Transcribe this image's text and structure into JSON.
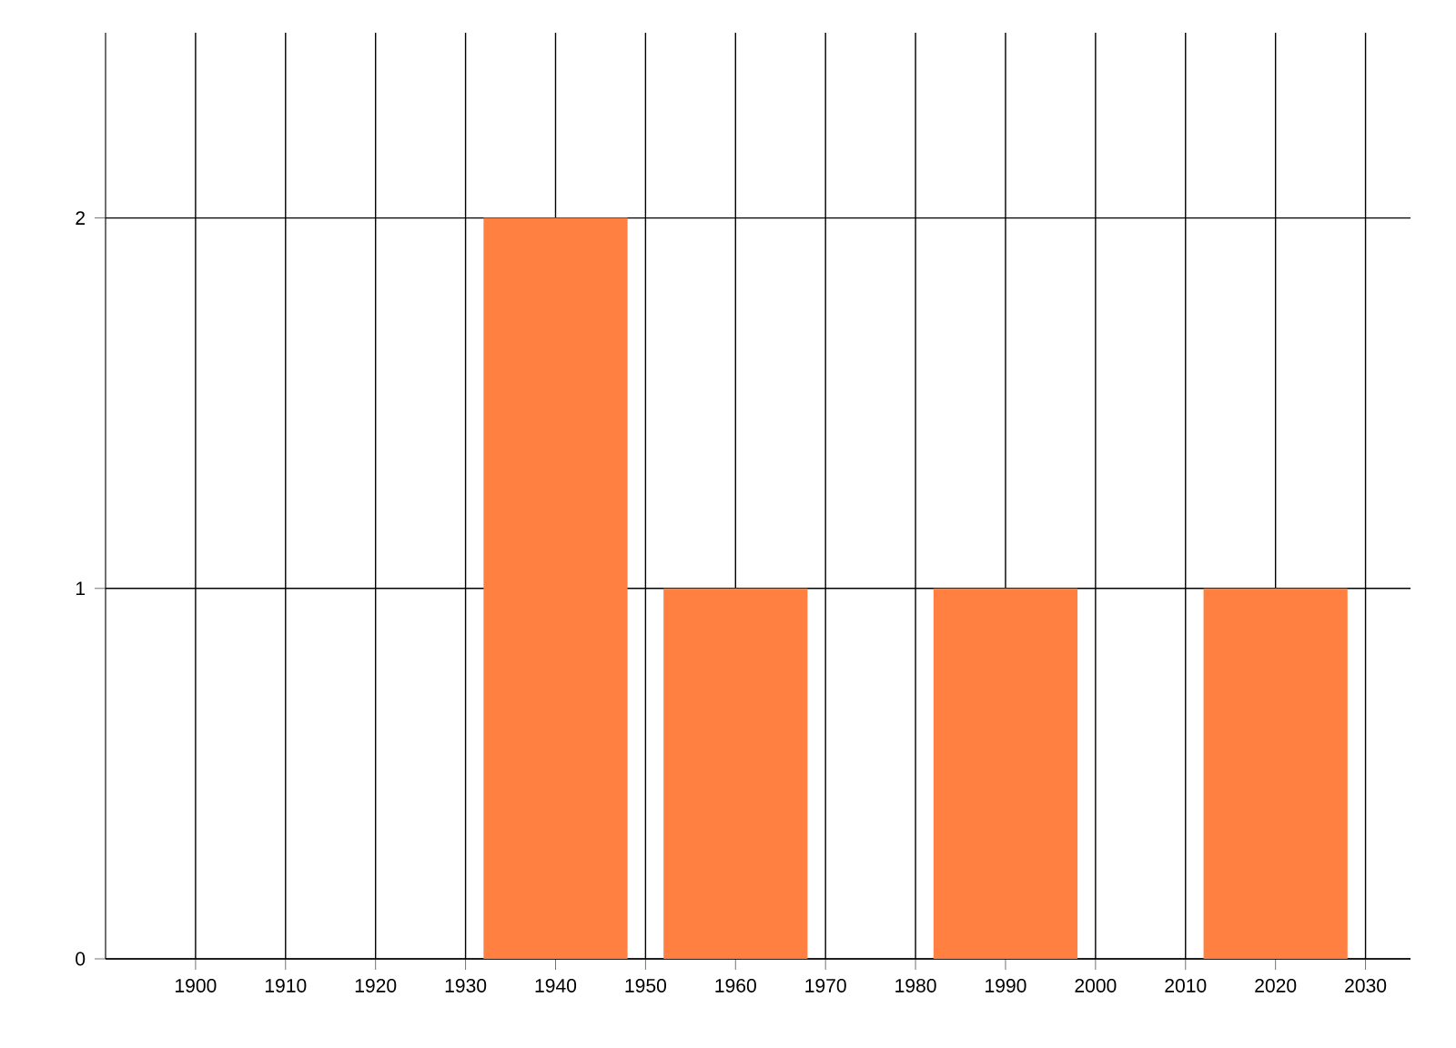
{
  "chart_data": {
    "type": "bar",
    "x": [
      1940,
      1960,
      1990,
      2020
    ],
    "values": [
      2,
      1,
      1,
      1
    ],
    "color": "#ff8040",
    "xlim": [
      1890,
      2035
    ],
    "ylim": [
      0,
      2.5
    ],
    "xticks": [
      1900,
      1910,
      1920,
      1930,
      1940,
      1950,
      1960,
      1970,
      1980,
      1990,
      2000,
      2010,
      2020,
      2030
    ],
    "yticks": [
      0,
      1,
      2
    ],
    "grid": true
  }
}
